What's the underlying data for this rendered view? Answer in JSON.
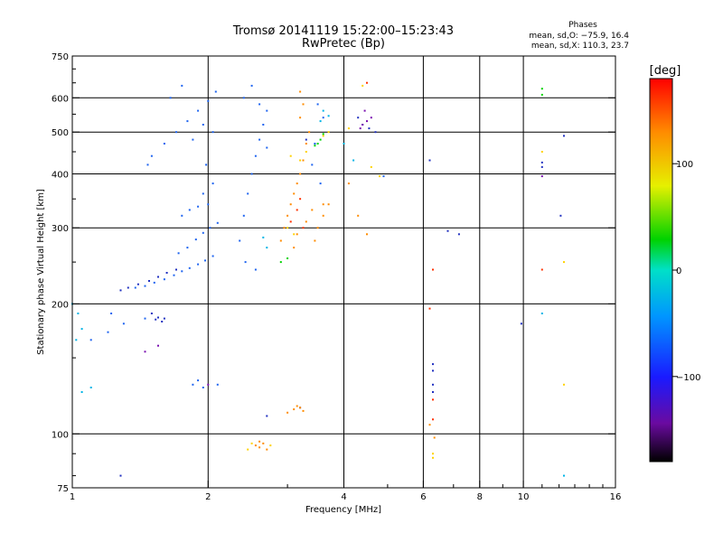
{
  "chart_data": {
    "type": "scatter",
    "title": "Tromsø 20141119 15:22:00–15:23:43",
    "subtitle": "RwPretec (Bp)",
    "stats": {
      "heading": "Phases",
      "line1": "mean, sd,O: −75.9, 16.4",
      "line2": "mean, sd,X: 110.3, 23.7"
    },
    "xlabel": "Frequency [MHz]",
    "ylabel": "Stationary phase Virtual Height [km]",
    "xscale": "log",
    "yscale": "log",
    "xlim": [
      1,
      16
    ],
    "ylim": [
      75,
      750
    ],
    "xticks": [
      1,
      2,
      4,
      6,
      8,
      10,
      16
    ],
    "yticks": [
      75,
      100,
      200,
      300,
      400,
      500,
      600,
      750
    ],
    "x_gridlines": [
      2,
      4,
      6,
      8,
      10
    ],
    "y_gridlines": [
      100,
      200,
      300,
      400,
      500,
      600
    ],
    "colorbar": {
      "label": "[deg]",
      "range": [
        -180,
        180
      ],
      "ticks": [
        100,
        0,
        -100
      ],
      "tick_labels": [
        "100",
        "0",
        "−100"
      ]
    },
    "series": [
      {
        "color": "#1e64f0",
        "points": [
          [
            1.38,
            218
          ],
          [
            1.45,
            220
          ],
          [
            1.52,
            224
          ],
          [
            1.6,
            228
          ],
          [
            1.68,
            233
          ],
          [
            1.75,
            238
          ],
          [
            1.82,
            242
          ],
          [
            1.9,
            247
          ],
          [
            1.97,
            252
          ],
          [
            2.05,
            258
          ],
          [
            1.72,
            262
          ],
          [
            1.8,
            270
          ],
          [
            1.88,
            282
          ],
          [
            1.95,
            292
          ],
          [
            2.02,
            300
          ],
          [
            2.1,
            308
          ],
          [
            1.75,
            320
          ],
          [
            1.82,
            330
          ],
          [
            1.9,
            336
          ],
          [
            2.0,
            340
          ],
          [
            1.95,
            360
          ],
          [
            2.05,
            380
          ],
          [
            1.98,
            420
          ],
          [
            1.6,
            470
          ],
          [
            1.7,
            500
          ],
          [
            1.8,
            530
          ],
          [
            1.9,
            560
          ],
          [
            2.0,
            590
          ],
          [
            2.08,
            620
          ],
          [
            1.65,
            600
          ],
          [
            1.75,
            640
          ],
          [
            1.85,
            480
          ],
          [
            1.95,
            520
          ],
          [
            2.05,
            500
          ],
          [
            2.35,
            280
          ],
          [
            2.4,
            320
          ],
          [
            2.45,
            360
          ],
          [
            2.5,
            400
          ],
          [
            2.55,
            440
          ],
          [
            2.6,
            480
          ],
          [
            2.65,
            520
          ],
          [
            2.7,
            560
          ],
          [
            2.4,
            600
          ],
          [
            2.5,
            640
          ],
          [
            2.6,
            580
          ],
          [
            2.7,
            460
          ],
          [
            2.42,
            250
          ],
          [
            2.55,
            240
          ],
          [
            1.47,
            420
          ],
          [
            1.5,
            440
          ],
          [
            1.85,
            130
          ],
          [
            1.95,
            128
          ],
          [
            1.9,
            133
          ],
          [
            2.1,
            130
          ],
          [
            1.1,
            165
          ],
          [
            1.2,
            172
          ],
          [
            1.3,
            180
          ],
          [
            1.22,
            190
          ],
          [
            1.45,
            185
          ],
          [
            3.5,
            580
          ],
          [
            3.6,
            540
          ],
          [
            3.45,
            470
          ],
          [
            3.4,
            420
          ],
          [
            3.55,
            380
          ],
          [
            4.9,
            395
          ]
        ]
      },
      {
        "color": "#2030c0",
        "points": [
          [
            1.28,
            215
          ],
          [
            1.33,
            218
          ],
          [
            1.4,
            222
          ],
          [
            1.48,
            226
          ],
          [
            1.55,
            231
          ],
          [
            1.62,
            236
          ],
          [
            1.7,
            240
          ],
          [
            1.5,
            190
          ],
          [
            1.55,
            186
          ],
          [
            1.58,
            182
          ],
          [
            1.53,
            184
          ],
          [
            1.6,
            185
          ],
          [
            2.7,
            110
          ],
          [
            3.2,
            115
          ],
          [
            4.4,
            520
          ],
          [
            4.55,
            510
          ],
          [
            4.3,
            540
          ],
          [
            4.7,
            500
          ],
          [
            3.3,
            480
          ],
          [
            6.2,
            430
          ],
          [
            6.3,
            145
          ],
          [
            6.3,
            140
          ],
          [
            6.3,
            130
          ],
          [
            6.3,
            125
          ],
          [
            6.8,
            295
          ],
          [
            7.2,
            290
          ],
          [
            9.9,
            180
          ],
          [
            11.0,
            425
          ],
          [
            11.0,
            415
          ],
          [
            12.3,
            490
          ],
          [
            12.1,
            320
          ],
          [
            1.28,
            80
          ]
        ]
      },
      {
        "color": "#00b4e6",
        "points": [
          [
            1.0,
            200
          ],
          [
            1.03,
            190
          ],
          [
            1.05,
            175
          ],
          [
            1.02,
            165
          ],
          [
            1.05,
            125
          ],
          [
            1.1,
            128
          ],
          [
            3.6,
            560
          ],
          [
            3.7,
            545
          ],
          [
            3.55,
            530
          ],
          [
            4.0,
            470
          ],
          [
            4.2,
            430
          ],
          [
            2.65,
            285
          ],
          [
            2.7,
            270
          ],
          [
            11.0,
            190
          ],
          [
            12.3,
            80
          ]
        ]
      },
      {
        "color": "#ff8c00",
        "points": [
          [
            2.9,
            280
          ],
          [
            2.95,
            300
          ],
          [
            3.0,
            320
          ],
          [
            3.05,
            340
          ],
          [
            3.1,
            360
          ],
          [
            3.15,
            380
          ],
          [
            3.2,
            400
          ],
          [
            3.25,
            430
          ],
          [
            3.3,
            470
          ],
          [
            3.35,
            500
          ],
          [
            3.2,
            540
          ],
          [
            3.25,
            580
          ],
          [
            3.2,
            620
          ],
          [
            3.1,
            270
          ],
          [
            3.15,
            290
          ],
          [
            3.3,
            310
          ],
          [
            3.4,
            330
          ],
          [
            3.5,
            300
          ],
          [
            3.6,
            320
          ],
          [
            3.7,
            340
          ],
          [
            3.45,
            280
          ],
          [
            3.0,
            112
          ],
          [
            3.1,
            114
          ],
          [
            3.2,
            115
          ],
          [
            3.25,
            113
          ],
          [
            3.15,
            116
          ],
          [
            2.55,
            94
          ],
          [
            2.6,
            93
          ],
          [
            2.65,
            95
          ],
          [
            2.7,
            92
          ],
          [
            2.6,
            96
          ],
          [
            3.6,
            340
          ],
          [
            4.3,
            320
          ],
          [
            4.5,
            290
          ],
          [
            4.1,
            380
          ],
          [
            6.2,
            105
          ],
          [
            6.35,
            98
          ]
        ]
      },
      {
        "color": "#ffd200",
        "points": [
          [
            3.0,
            300
          ],
          [
            3.1,
            290
          ],
          [
            3.2,
            430
          ],
          [
            3.3,
            450
          ],
          [
            3.05,
            440
          ],
          [
            3.6,
            490
          ],
          [
            3.7,
            500
          ],
          [
            4.1,
            510
          ],
          [
            4.4,
            640
          ],
          [
            4.6,
            415
          ],
          [
            4.8,
            395
          ],
          [
            2.5,
            95
          ],
          [
            2.45,
            92
          ],
          [
            2.75,
            94
          ],
          [
            6.3,
            90
          ],
          [
            6.3,
            88
          ],
          [
            11.0,
            450
          ],
          [
            12.3,
            130
          ],
          [
            12.3,
            250
          ]
        ]
      },
      {
        "color": "#ff3000",
        "points": [
          [
            3.05,
            310
          ],
          [
            3.15,
            330
          ],
          [
            3.25,
            300
          ],
          [
            3.2,
            350
          ],
          [
            6.2,
            195
          ],
          [
            6.3,
            240
          ],
          [
            6.3,
            120
          ],
          [
            11.0,
            240
          ],
          [
            4.5,
            650
          ],
          [
            6.3,
            108
          ]
        ]
      },
      {
        "color": "#00d200",
        "points": [
          [
            2.9,
            250
          ],
          [
            3.0,
            255
          ],
          [
            3.5,
            470
          ],
          [
            3.6,
            495
          ],
          [
            3.55,
            480
          ],
          [
            3.45,
            465
          ],
          [
            11.0,
            630
          ],
          [
            11.0,
            610
          ]
        ]
      },
      {
        "color": "#7a10b0",
        "points": [
          [
            4.4,
            520
          ],
          [
            4.5,
            530
          ],
          [
            4.6,
            540
          ],
          [
            4.45,
            560
          ],
          [
            4.35,
            510
          ],
          [
            1.55,
            160
          ],
          [
            1.45,
            155
          ],
          [
            2.0,
            130
          ],
          [
            11.0,
            395
          ]
        ]
      }
    ]
  }
}
